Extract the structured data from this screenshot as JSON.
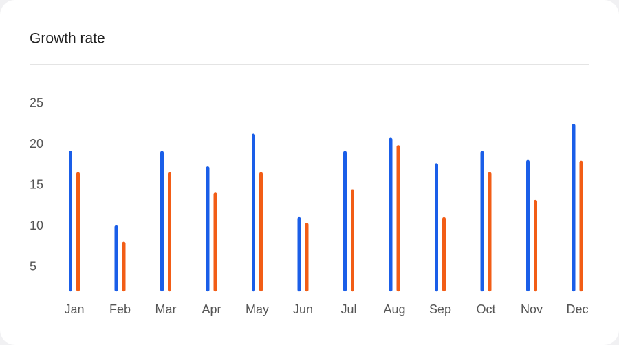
{
  "chart_data": {
    "type": "bar",
    "title": "Growth rate",
    "categories": [
      "Jan",
      "Feb",
      "Mar",
      "Apr",
      "May",
      "Jun",
      "Jul",
      "Aug",
      "Sep",
      "Oct",
      "Nov",
      "Dec"
    ],
    "series": [
      {
        "color": "#1a5ee8",
        "values": [
          19.2,
          10.1,
          19.2,
          17.3,
          21.3,
          11.1,
          19.2,
          20.8,
          17.7,
          19.2,
          18.1,
          22.5
        ]
      },
      {
        "color": "#f25d16",
        "values": [
          16.6,
          8.1,
          16.6,
          14.1,
          16.6,
          10.4,
          14.5,
          19.9,
          11.1,
          16.6,
          13.2,
          18.0
        ]
      }
    ],
    "ylim": [
      2,
      26
    ],
    "yticks": [
      5,
      10,
      15,
      20,
      25
    ],
    "grid": false
  }
}
